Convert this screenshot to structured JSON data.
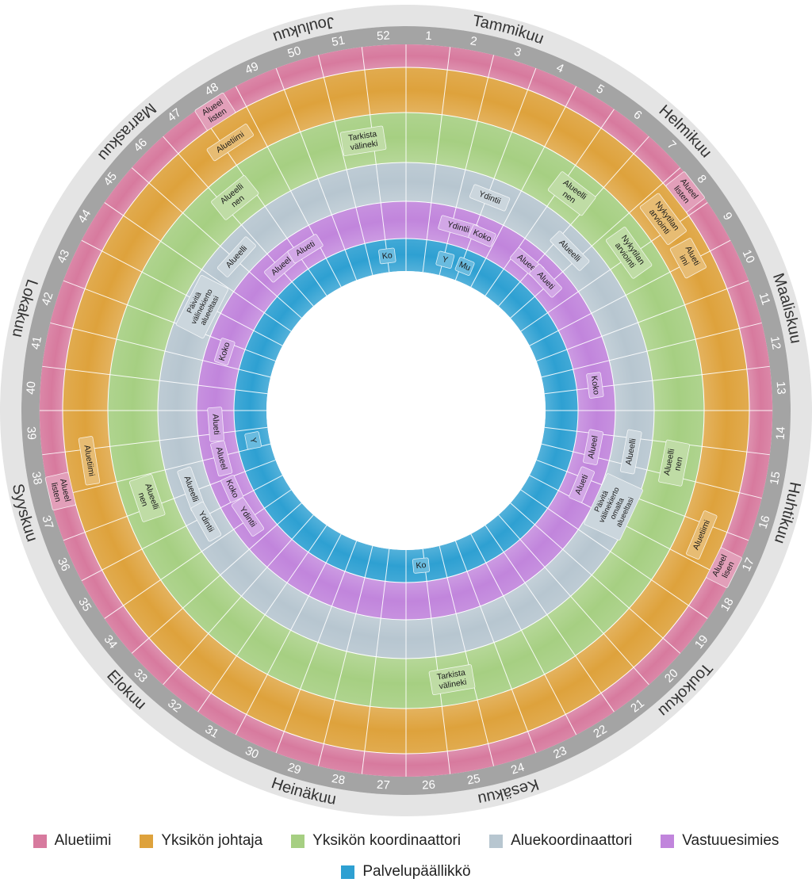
{
  "months": [
    {
      "label": "Tammikuu",
      "side": "right"
    },
    {
      "label": "Helmikuu",
      "side": "right"
    },
    {
      "label": "Maaliskuu",
      "side": "right"
    },
    {
      "label": "Huhtikuu",
      "side": "right"
    },
    {
      "label": "Toukokuu",
      "side": "right"
    },
    {
      "label": "Kesäkuu",
      "side": "right"
    },
    {
      "label": "Heinäkuu",
      "side": "left"
    },
    {
      "label": "Elokuu",
      "side": "left"
    },
    {
      "label": "Syyskuu",
      "side": "left"
    },
    {
      "label": "Lokakuu",
      "side": "left"
    },
    {
      "label": "Marraskuu",
      "side": "left"
    },
    {
      "label": "Joulukuu",
      "side": "left"
    }
  ],
  "weeks": [
    "1",
    "2",
    "3",
    "4",
    "5",
    "6",
    "7",
    "8",
    "9",
    "10",
    "11",
    "12",
    "13",
    "14",
    "15",
    "16",
    "17",
    "18",
    "19",
    "20",
    "21",
    "22",
    "23",
    "24",
    "25",
    "26",
    "27",
    "28",
    "29",
    "30",
    "31",
    "32",
    "33",
    "34",
    "35",
    "36",
    "37",
    "38",
    "39",
    "40",
    "41",
    "42",
    "43",
    "44",
    "45",
    "46",
    "47",
    "48",
    "49",
    "50",
    "51",
    "52"
  ],
  "rings": [
    {
      "key": "aluetiimi",
      "name": "Aluetiimi",
      "color": "#d77a9e"
    },
    {
      "key": "johtaja",
      "name": "Yksikön johtaja",
      "color": "#dea23c"
    },
    {
      "key": "koordinaattori",
      "name": "Yksikön koordinaattori",
      "color": "#a6cf82"
    },
    {
      "key": "aluekoordinaattori",
      "name": "Aluekoordinaattori",
      "color": "#b7c6d0"
    },
    {
      "key": "vastuuesimies",
      "name": "Vastuuesimies",
      "color": "#c185dc"
    },
    {
      "key": "palvelupaallikko",
      "name": "Palvelupäällikkö",
      "color": "#2ea0d2"
    }
  ],
  "events": [
    {
      "ring": "aluetiimi",
      "week": 7.5,
      "lines": [
        "Alueel",
        "listen"
      ]
    },
    {
      "ring": "aluetiimi",
      "week": 16.8,
      "lines": [
        "Alueel",
        "lisen"
      ]
    },
    {
      "ring": "aluetiimi",
      "week": 37.1,
      "lines": [
        "Alueel",
        "listen"
      ]
    },
    {
      "ring": "aluetiimi",
      "week": 47.3,
      "lines": [
        "Alueel",
        "listen"
      ]
    },
    {
      "ring": "johtaja",
      "week": 7.7,
      "lines": [
        "Nykytilan",
        "arviointi"
      ]
    },
    {
      "ring": "johtaja",
      "week": 8.9,
      "lines": [
        "Alueti",
        "imi"
      ]
    },
    {
      "ring": "johtaja",
      "week": 16.3,
      "lines": [
        "Aluetiimi"
      ]
    },
    {
      "ring": "johtaja",
      "week": 37.7,
      "lines": [
        "Aluetiimi"
      ]
    },
    {
      "ring": "johtaja",
      "week": 47.2,
      "lines": [
        "Aluetiimi"
      ]
    },
    {
      "ring": "koordinaattori",
      "week": 50.7,
      "lines": [
        "Tarkista",
        "välineki"
      ]
    },
    {
      "ring": "koordinaattori",
      "week": 5.4,
      "lines": [
        "Alueelli",
        "nen"
      ]
    },
    {
      "ring": "koordinaattori",
      "week": 7.9,
      "lines": [
        "Nykytilan",
        "arviointi"
      ]
    },
    {
      "ring": "koordinaattori",
      "week": 14.6,
      "lines": [
        "Alueelli",
        "nen"
      ]
    },
    {
      "ring": "koordinaattori",
      "week": 24.6,
      "lines": [
        "Tarkista",
        "välineki"
      ]
    },
    {
      "ring": "koordinaattori",
      "week": 36.3,
      "lines": [
        "Alueelli",
        "nen"
      ]
    },
    {
      "ring": "koordinaattori",
      "week": 46.4,
      "lines": [
        "Alueelli",
        "nen"
      ]
    },
    {
      "ring": "aluekoordinaattori",
      "week": 3.1,
      "lines": [
        "Ydintii"
      ]
    },
    {
      "ring": "aluekoordinaattori",
      "week": 6.6,
      "lines": [
        "Alueelli"
      ]
    },
    {
      "ring": "aluekoordinaattori",
      "week": 14.5,
      "lines": [
        "Alueelli"
      ]
    },
    {
      "ring": "aluekoordinaattori",
      "week": 16.6,
      "lines": [
        "Päivitä",
        "välinekierto",
        "omalta",
        "alueeltasi"
      ]
    },
    {
      "ring": "aluekoordinaattori",
      "week": 36.1,
      "lines": [
        "Alueelli"
      ]
    },
    {
      "ring": "aluekoordinaattori",
      "week": 34.8,
      "lines": [
        "Ydintii"
      ]
    },
    {
      "ring": "aluekoordinaattori",
      "week": 45.1,
      "lines": [
        "Alueelli"
      ]
    },
    {
      "ring": "aluekoordinaattori",
      "week": 42.9,
      "lines": [
        "Päivitä",
        "välinekierto",
        "alueeltasi"
      ]
    },
    {
      "ring": "vastuuesimies",
      "week": 2.3,
      "lines": [
        "Ydintii"
      ]
    },
    {
      "ring": "vastuuesimies",
      "week": 3.4,
      "lines": [
        "Koko"
      ]
    },
    {
      "ring": "vastuuesimies",
      "week": 5.7,
      "lines": [
        "Alueel"
      ]
    },
    {
      "ring": "vastuuesimies",
      "week": 6.8,
      "lines": [
        "Alueti"
      ]
    },
    {
      "ring": "vastuuesimies",
      "week": 11.9,
      "lines": [
        "Koko"
      ]
    },
    {
      "ring": "vastuuesimies",
      "week": 14.6,
      "lines": [
        "Alueel"
      ]
    },
    {
      "ring": "vastuuesimies",
      "week": 16.3,
      "lines": [
        "Alueti"
      ]
    },
    {
      "ring": "vastuuesimies",
      "week": 35.5,
      "lines": [
        "Koko"
      ]
    },
    {
      "ring": "vastuuesimies",
      "week": 34.1,
      "lines": [
        "Ydintii"
      ]
    },
    {
      "ring": "vastuuesimies",
      "week": 36.9,
      "lines": [
        "Alueel"
      ]
    },
    {
      "ring": "vastuuesimies",
      "week": 38.4,
      "lines": [
        "Alueti"
      ]
    },
    {
      "ring": "vastuuesimies",
      "week": 41.6,
      "lines": [
        "Koko"
      ]
    },
    {
      "ring": "vastuuesimies",
      "week": 46.1,
      "lines": [
        "Alueel"
      ]
    },
    {
      "ring": "vastuuesimies",
      "week": 47.4,
      "lines": [
        "Alueti"
      ]
    },
    {
      "ring": "palvelupaallikko",
      "week": 51.0,
      "lines": [
        "Ko"
      ]
    },
    {
      "ring": "palvelupaallikko",
      "week": 2.1,
      "lines": [
        "Y"
      ]
    },
    {
      "ring": "palvelupaallikko",
      "week": 3.2,
      "lines": [
        "Mu"
      ]
    },
    {
      "ring": "palvelupaallikko",
      "week": 25.2,
      "lines": [
        "Ko"
      ]
    },
    {
      "ring": "palvelupaallikko",
      "week": 37.4,
      "lines": [
        "Y"
      ]
    }
  ]
}
